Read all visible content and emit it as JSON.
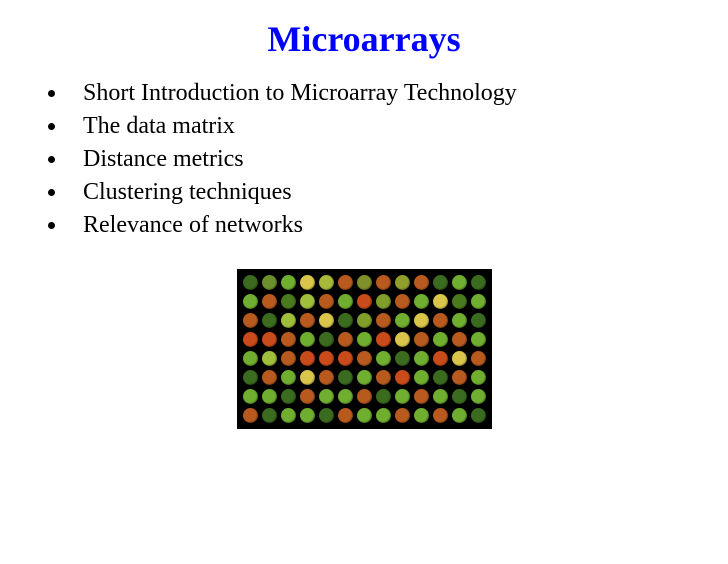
{
  "title": "Microarrays",
  "title_color": "#0000ff",
  "title_fontsize": 36,
  "bullets": [
    "Short Introduction to Microarray Technology",
    "The data matrix",
    "Distance metrics",
    "Clustering techniques",
    "Relevance of networks"
  ],
  "bullet_fontsize": 24,
  "bullet_text_color": "#000000",
  "bullet_dot_color": "#000000",
  "microarray": {
    "rows": 8,
    "cols": 13,
    "spot_size": 15,
    "gap": 4,
    "background": "#000000",
    "colors": [
      [
        "#3a6b1e",
        "#6b8f2a",
        "#6fae2e",
        "#d9c54a",
        "#a8b93a",
        "#b85a1e",
        "#7f8f2a",
        "#b85a1e",
        "#8f9f2a",
        "#b85a1e",
        "#3a6b1e",
        "#6fae2e",
        "#3a6b1e"
      ],
      [
        "#6fae2e",
        "#b85a1e",
        "#4a7a1e",
        "#9fbf3a",
        "#b85a1e",
        "#6fae2e",
        "#c94a1a",
        "#7f9f2a",
        "#b85a1e",
        "#6fae2e",
        "#d9c54a",
        "#4a7a1e",
        "#6fae2e"
      ],
      [
        "#b85a1e",
        "#3a6b1e",
        "#9fbf3a",
        "#b85a1e",
        "#d9c54a",
        "#3a6b1e",
        "#7f9f2a",
        "#b85a1e",
        "#6fae2e",
        "#d9c54a",
        "#b85a1e",
        "#6fae2e",
        "#3a6b1e"
      ],
      [
        "#c94a1a",
        "#c94a1a",
        "#b85a1e",
        "#6fae2e",
        "#3a6b1e",
        "#b85a1e",
        "#6fae2e",
        "#c94a1a",
        "#d9c54a",
        "#b85a1e",
        "#6fae2e",
        "#b85a1e",
        "#6fae2e"
      ],
      [
        "#6fae2e",
        "#9fbf3a",
        "#b85a1e",
        "#c94a1a",
        "#c94a1a",
        "#c94a1a",
        "#b85a1e",
        "#6fae2e",
        "#3a6b1e",
        "#6fae2e",
        "#c94a1a",
        "#d9c54a",
        "#b85a1e"
      ],
      [
        "#3a6b1e",
        "#b85a1e",
        "#6fae2e",
        "#d9c54a",
        "#b85a1e",
        "#3a6b1e",
        "#6fae2e",
        "#b85a1e",
        "#c94a1a",
        "#6fae2e",
        "#3a6b1e",
        "#b85a1e",
        "#6fae2e"
      ],
      [
        "#6fae2e",
        "#6fae2e",
        "#3a6b1e",
        "#b85a1e",
        "#6fae2e",
        "#6fae2e",
        "#b85a1e",
        "#3a6b1e",
        "#6fae2e",
        "#b85a1e",
        "#6fae2e",
        "#3a6b1e",
        "#6fae2e"
      ],
      [
        "#b85a1e",
        "#3a6b1e",
        "#6fae2e",
        "#6fae2e",
        "#3a6b1e",
        "#b85a1e",
        "#6fae2e",
        "#6fae2e",
        "#b85a1e",
        "#6fae2e",
        "#b85a1e",
        "#6fae2e",
        "#3a6b1e"
      ]
    ]
  }
}
